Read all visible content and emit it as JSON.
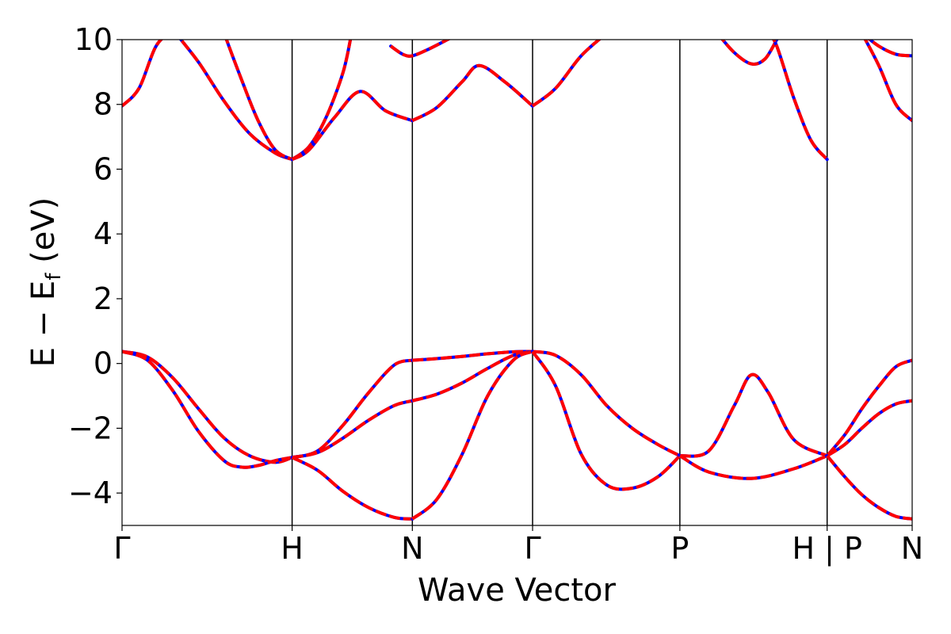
{
  "chart_data": {
    "type": "line",
    "title": "",
    "xlabel": "Wave Vector",
    "ylabel": {
      "main": "E − E",
      "sub": "f",
      "unit": " (eV)"
    },
    "ylim": [
      -5,
      10
    ],
    "yticks": [
      -4,
      -2,
      0,
      2,
      4,
      6,
      8,
      10
    ],
    "ytick_labels": [
      "−4",
      "−2",
      "0",
      "2",
      "4",
      "6",
      "8",
      "10"
    ],
    "x_path_positions": [
      0,
      1,
      1.707,
      2.414,
      3.28,
      4.146,
      4.646
    ],
    "x_path_labels": [
      "Γ",
      "H",
      "N",
      "Γ",
      "P",
      "H | P",
      "N"
    ],
    "grid": false,
    "series_colors": [
      "#0000ff",
      "#ff0000"
    ],
    "series": [
      {
        "name": "",
        "style": "solid-blue",
        "bands": "band structure"
      },
      {
        "name": "",
        "style": "dashed-red",
        "bands": "band structure"
      }
    ],
    "bands": [
      {
        "segment": "Γ-H",
        "x": [
          0,
          0.15,
          0.3,
          0.45,
          0.6,
          0.75,
          0.9,
          1.0
        ],
        "y": [
          0.37,
          0.2,
          -0.45,
          -1.4,
          -2.3,
          -2.85,
          -3.05,
          -2.9
        ]
      },
      {
        "segment": "Γ-H",
        "x": [
          0,
          0.15,
          0.3,
          0.45,
          0.6,
          0.7,
          0.8,
          0.9,
          1.0
        ],
        "y": [
          0.37,
          0.1,
          -0.85,
          -2.1,
          -3.0,
          -3.2,
          -3.15,
          -3.0,
          -2.9
        ]
      },
      {
        "segment": "H-N",
        "x": [
          1.0,
          1.15,
          1.3,
          1.45,
          1.6,
          1.707
        ],
        "y": [
          -2.9,
          -2.7,
          -1.9,
          -0.9,
          -0.05,
          0.1
        ]
      },
      {
        "segment": "H-N",
        "x": [
          1.0,
          1.15,
          1.3,
          1.45,
          1.6,
          1.707
        ],
        "y": [
          -2.9,
          -2.75,
          -2.3,
          -1.75,
          -1.3,
          -1.15
        ]
      },
      {
        "segment": "H-N",
        "x": [
          1.0,
          1.15,
          1.3,
          1.45,
          1.6,
          1.707
        ],
        "y": [
          -2.9,
          -3.3,
          -3.95,
          -4.45,
          -4.75,
          -4.8
        ]
      },
      {
        "segment": "N-Γ",
        "x": [
          1.707,
          1.85,
          2.0,
          2.15,
          2.3,
          2.414
        ],
        "y": [
          0.1,
          0.15,
          0.22,
          0.3,
          0.36,
          0.37
        ]
      },
      {
        "segment": "N-Γ",
        "x": [
          1.707,
          1.85,
          2.0,
          2.15,
          2.3,
          2.414
        ],
        "y": [
          -1.15,
          -0.95,
          -0.6,
          -0.15,
          0.25,
          0.37
        ]
      },
      {
        "segment": "N-Γ",
        "x": [
          1.707,
          1.85,
          2.0,
          2.15,
          2.3,
          2.414
        ],
        "y": [
          -4.8,
          -4.2,
          -2.8,
          -1.0,
          0.1,
          0.37
        ]
      },
      {
        "segment": "Γ-P",
        "x": [
          2.414,
          2.55,
          2.7,
          2.85,
          3.0,
          3.15,
          3.28
        ],
        "y": [
          0.37,
          0.25,
          -0.35,
          -1.3,
          -2.0,
          -2.5,
          -2.85
        ]
      },
      {
        "segment": "Γ-P",
        "x": [
          2.414,
          2.55,
          2.7,
          2.85,
          3.0,
          3.15,
          3.28
        ],
        "y": [
          0.37,
          -0.7,
          -2.8,
          -3.75,
          -3.85,
          -3.5,
          -2.85
        ]
      },
      {
        "segment": "P-H",
        "x": [
          3.28,
          3.45,
          3.6,
          3.7,
          3.8,
          3.95,
          4.146
        ],
        "y": [
          -2.85,
          -2.7,
          -1.3,
          -0.35,
          -0.9,
          -2.35,
          -2.85
        ]
      },
      {
        "segment": "P-H",
        "x": [
          3.28,
          3.45,
          3.7,
          3.95,
          4.146
        ],
        "y": [
          -2.85,
          -3.35,
          -3.55,
          -3.25,
          -2.85
        ]
      },
      {
        "segment": "P-N",
        "x": [
          4.146,
          4.25,
          4.35,
          4.45,
          4.55,
          4.646
        ],
        "y": [
          -2.85,
          -2.2,
          -1.4,
          -0.7,
          -0.1,
          0.1
        ]
      },
      {
        "segment": "P-N",
        "x": [
          4.146,
          4.25,
          4.35,
          4.45,
          4.55,
          4.646
        ],
        "y": [
          -2.85,
          -2.5,
          -2.0,
          -1.55,
          -1.25,
          -1.15
        ]
      },
      {
        "segment": "P-N",
        "x": [
          4.146,
          4.25,
          4.35,
          4.45,
          4.55,
          4.646
        ],
        "y": [
          -2.85,
          -3.5,
          -4.05,
          -4.45,
          -4.72,
          -4.8
        ]
      },
      {
        "segment": "Γ-H",
        "x": [
          0,
          0.1,
          0.2,
          0.3
        ],
        "y": [
          7.95,
          8.5,
          9.8,
          10.3
        ]
      },
      {
        "segment": "Γ-H",
        "x": [
          0.3,
          0.45,
          0.6,
          0.75,
          0.9,
          1.0
        ],
        "y": [
          10.3,
          9.3,
          8.1,
          7.1,
          6.5,
          6.3
        ]
      },
      {
        "segment": "Γ-H",
        "x": [
          0.6,
          0.7,
          0.8,
          0.9,
          1.0
        ],
        "y": [
          10.2,
          8.8,
          7.5,
          6.6,
          6.3
        ]
      },
      {
        "segment": "H-N",
        "x": [
          1.0,
          1.1,
          1.2,
          1.3,
          1.35
        ],
        "y": [
          6.3,
          6.7,
          7.6,
          9.0,
          10.2
        ]
      },
      {
        "segment": "H-N",
        "x": [
          1.0,
          1.1,
          1.25,
          1.4,
          1.55,
          1.707
        ],
        "y": [
          6.3,
          6.6,
          7.6,
          8.4,
          7.8,
          7.5
        ]
      },
      {
        "segment": "N-Γ",
        "x": [
          1.707,
          1.85,
          2.0,
          2.1,
          2.25,
          2.414
        ],
        "y": [
          7.5,
          7.9,
          8.7,
          9.2,
          8.7,
          7.95
        ]
      },
      {
        "segment": "N-Γ",
        "x": [
          1.58,
          1.65,
          1.707,
          1.8,
          1.95
        ],
        "y": [
          9.8,
          9.55,
          9.5,
          9.7,
          10.1
        ]
      },
      {
        "segment": "Γ-P",
        "x": [
          2.414,
          2.55,
          2.7,
          2.85
        ],
        "y": [
          7.95,
          8.5,
          9.5,
          10.2
        ]
      },
      {
        "segment": "P-H",
        "x": [
          3.5,
          3.6,
          3.7,
          3.78,
          3.85
        ],
        "y": [
          10.2,
          9.6,
          9.25,
          9.4,
          10.0
        ]
      },
      {
        "segment": "P-H",
        "x": [
          3.8,
          3.85,
          3.95,
          4.05,
          4.146
        ],
        "y": [
          10.2,
          9.8,
          8.2,
          6.9,
          6.3
        ]
      },
      {
        "segment": "P-N",
        "x": [
          4.35,
          4.45,
          4.55,
          4.646
        ],
        "y": [
          10.2,
          9.2,
          8.0,
          7.5
        ]
      },
      {
        "segment": "P-N",
        "x": [
          4.35,
          4.45,
          4.55,
          4.646
        ],
        "y": [
          10.2,
          9.8,
          9.55,
          9.5
        ]
      }
    ]
  }
}
